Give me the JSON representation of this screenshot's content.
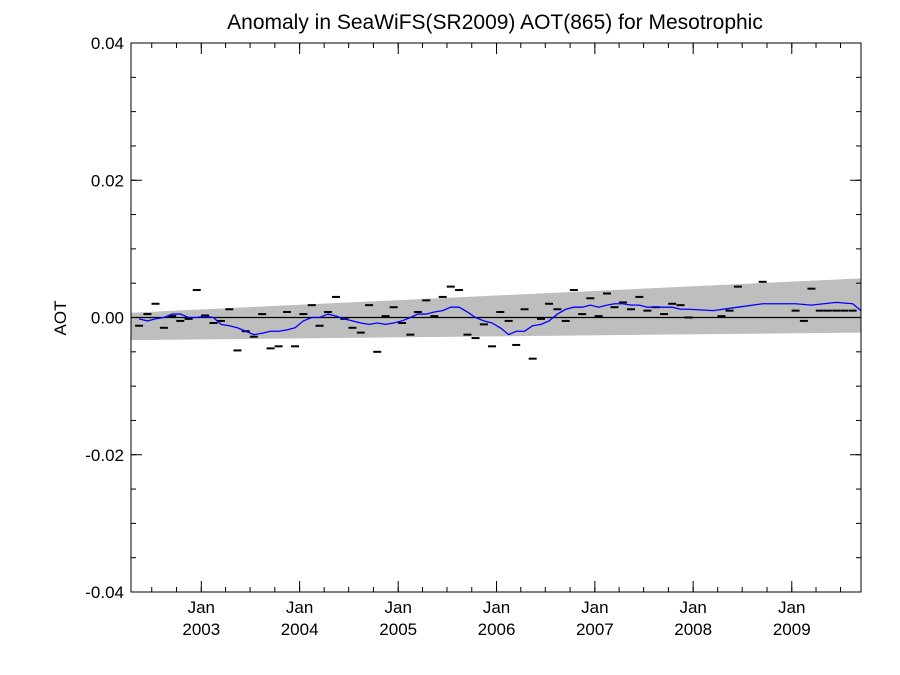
{
  "chart_data": {
    "type": "line",
    "title": "Anomaly in SeaWiFS(SR2009) AOT(865) for Mesotrophic",
    "ylabel": "AOT",
    "xlabel": "",
    "ylim": [
      -0.04,
      0.04
    ],
    "xlim": [
      "2002-04-15",
      "2009-09-15"
    ],
    "yticks": [
      {
        "value": 0.04,
        "label": "0.04"
      },
      {
        "value": 0.02,
        "label": "0.02"
      },
      {
        "value": 0.0,
        "label": "0.00"
      },
      {
        "value": -0.02,
        "label": "-0.02"
      },
      {
        "value": -0.04,
        "label": "-0.04"
      }
    ],
    "yminor_step": 0.005,
    "xticks": [
      {
        "date": "2003-01-01",
        "month": "Jan",
        "year": "2003"
      },
      {
        "date": "2004-01-01",
        "month": "Jan",
        "year": "2004"
      },
      {
        "date": "2005-01-01",
        "month": "Jan",
        "year": "2005"
      },
      {
        "date": "2006-01-01",
        "month": "Jan",
        "year": "2006"
      },
      {
        "date": "2007-01-01",
        "month": "Jan",
        "year": "2007"
      },
      {
        "date": "2008-01-01",
        "month": "Jan",
        "year": "2008"
      },
      {
        "date": "2009-01-01",
        "month": "Jan",
        "year": "2009"
      }
    ],
    "zero_line": 0.0,
    "confidence_band": {
      "color": "#bebebe",
      "start": {
        "x": "2002-04-15",
        "lower": -0.0033,
        "upper": 0.0007
      },
      "end": {
        "x": "2009-09-15",
        "lower": -0.0022,
        "upper": 0.0057
      }
    },
    "series": [
      {
        "kind": "monthly_anomaly_markers",
        "color": "#000000",
        "x": [
          "2002-05",
          "2002-06",
          "2002-07",
          "2002-08",
          "2002-09",
          "2002-10",
          "2002-11",
          "2002-12",
          "2003-01",
          "2003-02",
          "2003-03",
          "2003-04",
          "2003-05",
          "2003-06",
          "2003-07",
          "2003-08",
          "2003-09",
          "2003-10",
          "2003-11",
          "2003-12",
          "2004-01",
          "2004-02",
          "2004-03",
          "2004-04",
          "2004-05",
          "2004-06",
          "2004-07",
          "2004-08",
          "2004-09",
          "2004-10",
          "2004-11",
          "2004-12",
          "2005-01",
          "2005-02",
          "2005-03",
          "2005-04",
          "2005-05",
          "2005-06",
          "2005-07",
          "2005-08",
          "2005-09",
          "2005-10",
          "2005-11",
          "2005-12",
          "2006-01",
          "2006-02",
          "2006-03",
          "2006-04",
          "2006-05",
          "2006-06",
          "2006-07",
          "2006-08",
          "2006-09",
          "2006-10",
          "2006-11",
          "2006-12",
          "2007-01",
          "2007-02",
          "2007-03",
          "2007-04",
          "2007-05",
          "2007-06",
          "2007-07",
          "2007-08",
          "2007-09",
          "2007-10",
          "2007-11",
          "2007-12",
          "2008-04",
          "2008-05",
          "2008-06",
          "2008-09",
          "2009-01",
          "2009-02",
          "2009-03",
          "2009-04",
          "2009-05",
          "2009-06",
          "2009-07",
          "2009-08"
        ],
        "y": [
          -0.0012,
          0.0005,
          0.002,
          -0.0015,
          0.0002,
          -0.0005,
          -0.0002,
          0.004,
          0.0003,
          -0.0008,
          -0.0005,
          0.0012,
          -0.0048,
          -0.002,
          -0.0028,
          0.0005,
          -0.0045,
          -0.0042,
          0.0008,
          -0.0042,
          0.0005,
          0.0018,
          -0.0012,
          0.0008,
          0.003,
          -0.0002,
          -0.0015,
          -0.0022,
          0.0018,
          -0.005,
          0.0002,
          0.0015,
          -0.0008,
          -0.0025,
          0.0008,
          0.0025,
          0.0002,
          0.003,
          0.0045,
          0.004,
          -0.0025,
          -0.003,
          -0.001,
          -0.0042,
          0.0008,
          -0.0005,
          -0.004,
          0.0012,
          -0.006,
          -0.0002,
          0.002,
          0.0012,
          -0.0005,
          0.004,
          0.0005,
          0.0028,
          0.0002,
          0.0035,
          0.0015,
          0.0022,
          0.0012,
          0.003,
          0.001,
          0.0015,
          0.0005,
          0.002,
          0.0018,
          0.0,
          0.0002,
          0.001,
          0.0045,
          0.0052,
          0.001,
          -0.0005,
          0.0042,
          0.001,
          0.001,
          0.001,
          0.001,
          0.001
        ]
      },
      {
        "kind": "smoothed_line",
        "color": "#0000ff",
        "x": [
          "2002-05",
          "2002-06",
          "2002-07",
          "2002-08",
          "2002-09",
          "2002-10",
          "2002-11",
          "2002-12",
          "2003-01",
          "2003-02",
          "2003-03",
          "2003-04",
          "2003-05",
          "2003-06",
          "2003-07",
          "2003-08",
          "2003-09",
          "2003-10",
          "2003-11",
          "2003-12",
          "2004-01",
          "2004-02",
          "2004-03",
          "2004-04",
          "2004-05",
          "2004-06",
          "2004-07",
          "2004-08",
          "2004-09",
          "2004-10",
          "2004-11",
          "2004-12",
          "2005-01",
          "2005-02",
          "2005-03",
          "2005-04",
          "2005-05",
          "2005-06",
          "2005-07",
          "2005-08",
          "2005-09",
          "2005-10",
          "2005-11",
          "2005-12",
          "2006-01",
          "2006-02",
          "2006-03",
          "2006-04",
          "2006-05",
          "2006-06",
          "2006-07",
          "2006-08",
          "2006-09",
          "2006-10",
          "2006-11",
          "2006-12",
          "2007-01",
          "2007-02",
          "2007-03",
          "2007-04",
          "2007-05",
          "2007-06",
          "2007-07",
          "2007-08",
          "2007-09",
          "2007-10",
          "2007-11",
          "2007-12",
          "2008-03",
          "2008-06",
          "2008-09",
          "2009-01",
          "2009-03",
          "2009-06",
          "2009-08",
          "2009-09"
        ],
        "y": [
          -0.0002,
          -0.0005,
          -0.0002,
          0.0,
          0.0005,
          0.0005,
          0.0,
          0.0,
          0.0002,
          0.0,
          -0.001,
          -0.0012,
          -0.0015,
          -0.002,
          -0.0025,
          -0.0023,
          -0.002,
          -0.002,
          -0.0018,
          -0.0015,
          -0.0005,
          0.0,
          0.0,
          0.0005,
          0.0002,
          -0.0002,
          -0.0005,
          -0.0008,
          -0.001,
          -0.0008,
          -0.001,
          -0.0008,
          -0.0005,
          0.0,
          0.0005,
          0.0005,
          0.0008,
          0.001,
          0.0015,
          0.0015,
          0.0008,
          0.0,
          -0.0005,
          -0.0008,
          -0.0015,
          -0.0025,
          -0.002,
          -0.002,
          -0.0012,
          -0.001,
          -0.0005,
          0.0005,
          0.0012,
          0.0015,
          0.0015,
          0.0018,
          0.0015,
          0.0018,
          0.002,
          0.002,
          0.0018,
          0.0018,
          0.0015,
          0.0015,
          0.0015,
          0.0015,
          0.0012,
          0.0012,
          0.001,
          0.0015,
          0.002,
          0.002,
          0.0018,
          0.0022,
          0.002,
          0.001
        ]
      }
    ],
    "grid": false,
    "legend": "none"
  }
}
